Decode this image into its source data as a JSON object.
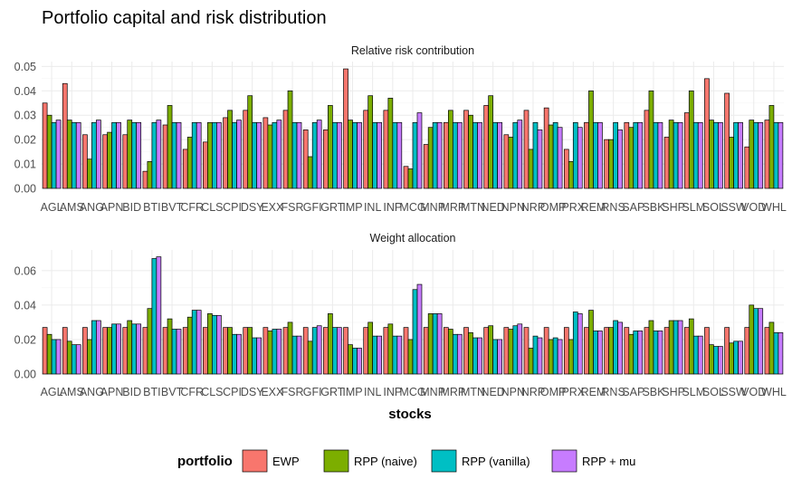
{
  "title": "Portfolio capital and risk distribution",
  "xlabel": "stocks",
  "legend": {
    "title": "portfolio",
    "placement": "bottom"
  },
  "chart_data": {
    "type": "bar",
    "categories": [
      "AGL",
      "AMS",
      "ANG",
      "APN",
      "BID",
      "BTI",
      "BVT",
      "CFR",
      "CLS",
      "CPI",
      "DSY",
      "EXX",
      "FSR",
      "GFI",
      "GRT",
      "IMP",
      "INL",
      "INP",
      "MCG",
      "MNP",
      "MRP",
      "MTN",
      "NED",
      "NPN",
      "NRP",
      "OMP",
      "PRX",
      "REM",
      "RNS",
      "SAP",
      "SBK",
      "SHP",
      "SLM",
      "SOL",
      "SSW",
      "VOD",
      "WHL"
    ],
    "series": [
      {
        "name": "EWP",
        "color": "#F8766D"
      },
      {
        "name": "RPP (naive)",
        "color": "#7CAE00"
      },
      {
        "name": "RPP (vanilla)",
        "color": "#00BFC4"
      },
      {
        "name": "RPP + mu",
        "color": "#C77CFF"
      }
    ],
    "panels": [
      {
        "title": "Relative risk contribution",
        "ylim": [
          0,
          0.052
        ],
        "yticks": [
          "0.00",
          "0.01",
          "0.02",
          "0.03",
          "0.04",
          "0.05"
        ],
        "values": [
          [
            0.035,
            0.043,
            0.022,
            0.022,
            0.022,
            0.007,
            0.026,
            0.016,
            0.019,
            0.029,
            0.032,
            0.029,
            0.032,
            0.024,
            0.024,
            0.049,
            0.032,
            0.032,
            0.009,
            0.018,
            0.027,
            0.032,
            0.034,
            0.022,
            0.032,
            0.033,
            0.016,
            0.027,
            0.02,
            0.027,
            0.032,
            0.021,
            0.031,
            0.045,
            0.039,
            0.017,
            0.028
          ],
          [
            0.03,
            0.028,
            0.012,
            0.023,
            0.028,
            0.011,
            0.034,
            0.021,
            0.027,
            0.032,
            0.038,
            0.026,
            0.04,
            0.013,
            0.034,
            0.028,
            0.038,
            0.037,
            0.008,
            0.025,
            0.032,
            0.03,
            0.038,
            0.021,
            0.016,
            0.026,
            0.011,
            0.04,
            0.02,
            0.025,
            0.04,
            0.028,
            0.04,
            0.028,
            0.021,
            0.028,
            0.034
          ],
          [
            0.027,
            0.027,
            0.027,
            0.027,
            0.027,
            0.027,
            0.027,
            0.027,
            0.027,
            0.027,
            0.027,
            0.027,
            0.027,
            0.027,
            0.027,
            0.027,
            0.027,
            0.027,
            0.027,
            0.027,
            0.027,
            0.027,
            0.027,
            0.027,
            0.027,
            0.027,
            0.027,
            0.027,
            0.027,
            0.027,
            0.027,
            0.027,
            0.027,
            0.027,
            0.027,
            0.027,
            0.027
          ],
          [
            0.028,
            0.027,
            0.028,
            0.027,
            0.027,
            0.028,
            0.027,
            0.027,
            0.027,
            0.028,
            0.027,
            0.028,
            0.027,
            0.028,
            0.027,
            0.027,
            0.027,
            0.027,
            0.031,
            0.027,
            0.027,
            0.027,
            0.027,
            0.028,
            0.024,
            0.025,
            0.025,
            0.027,
            0.024,
            0.027,
            0.027,
            0.027,
            0.027,
            0.027,
            0.027,
            0.027,
            0.027
          ]
        ]
      },
      {
        "title": "Weight allocation",
        "ylim": [
          0,
          0.072
        ],
        "yticks": [
          "0.00",
          "0.02",
          "0.04",
          "0.06"
        ],
        "values": [
          [
            0.027,
            0.027,
            0.027,
            0.027,
            0.027,
            0.027,
            0.027,
            0.027,
            0.027,
            0.027,
            0.027,
            0.027,
            0.027,
            0.027,
            0.027,
            0.027,
            0.027,
            0.027,
            0.027,
            0.027,
            0.027,
            0.027,
            0.027,
            0.027,
            0.027,
            0.027,
            0.027,
            0.027,
            0.027,
            0.027,
            0.027,
            0.027,
            0.027,
            0.027,
            0.027,
            0.027,
            0.027
          ],
          [
            0.023,
            0.019,
            0.02,
            0.027,
            0.031,
            0.038,
            0.032,
            0.033,
            0.035,
            0.027,
            0.027,
            0.025,
            0.03,
            0.019,
            0.035,
            0.017,
            0.03,
            0.029,
            0.02,
            0.035,
            0.026,
            0.024,
            0.028,
            0.026,
            0.015,
            0.02,
            0.02,
            0.037,
            0.027,
            0.023,
            0.031,
            0.031,
            0.032,
            0.017,
            0.018,
            0.04,
            0.03
          ],
          [
            0.02,
            0.017,
            0.031,
            0.029,
            0.029,
            0.067,
            0.026,
            0.037,
            0.034,
            0.023,
            0.021,
            0.026,
            0.022,
            0.027,
            0.027,
            0.015,
            0.022,
            0.022,
            0.049,
            0.035,
            0.023,
            0.021,
            0.02,
            0.028,
            0.022,
            0.021,
            0.036,
            0.025,
            0.031,
            0.025,
            0.025,
            0.031,
            0.022,
            0.016,
            0.019,
            0.038,
            0.024
          ],
          [
            0.02,
            0.017,
            0.031,
            0.029,
            0.029,
            0.068,
            0.026,
            0.037,
            0.034,
            0.023,
            0.021,
            0.026,
            0.022,
            0.028,
            0.027,
            0.015,
            0.022,
            0.022,
            0.052,
            0.035,
            0.023,
            0.021,
            0.02,
            0.029,
            0.021,
            0.02,
            0.035,
            0.025,
            0.03,
            0.025,
            0.025,
            0.031,
            0.022,
            0.016,
            0.019,
            0.038,
            0.024
          ]
        ]
      }
    ]
  }
}
